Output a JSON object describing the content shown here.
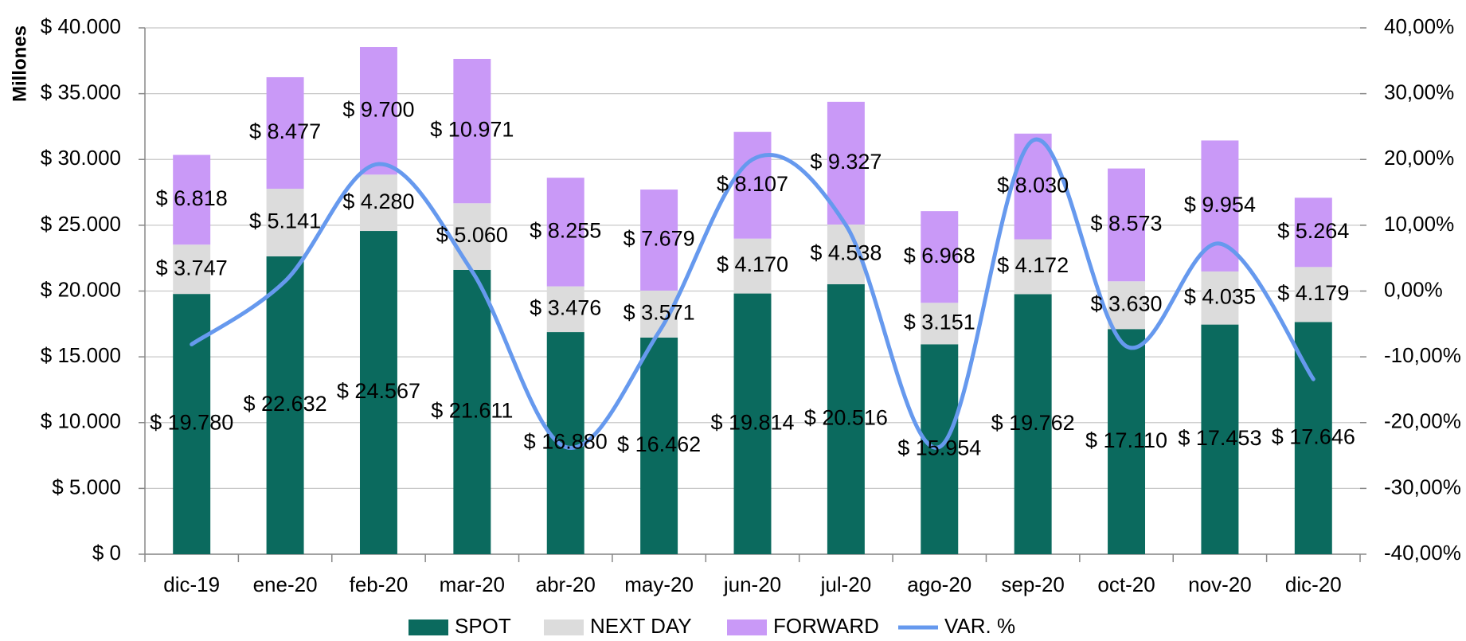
{
  "chart_data": {
    "type": "bar",
    "y_axis_label": "Millones",
    "categories": [
      "dic-19",
      "ene-20",
      "feb-20",
      "mar-20",
      "abr-20",
      "may-20",
      "jun-20",
      "jul-20",
      "ago-20",
      "sep-20",
      "oct-20",
      "nov-20",
      "dic-20"
    ],
    "series": [
      {
        "name": "SPOT",
        "color": "#0b6a5e",
        "values": [
          19780,
          22632,
          24567,
          21611,
          16880,
          16462,
          19814,
          20516,
          15954,
          19762,
          17110,
          17453,
          17646
        ],
        "value_labels": [
          "$ 19.780",
          "$ 22.632",
          "$ 24.567",
          "$ 21.611",
          "$ 16.880",
          "$ 16.462",
          "$ 19.814",
          "$ 20.516",
          "$ 15.954",
          "$ 19.762",
          "$ 17.110",
          "$ 17.453",
          "$ 17.646"
        ]
      },
      {
        "name": "NEXT DAY",
        "color": "#dcdcdc",
        "values": [
          3747,
          5141,
          4280,
          5060,
          3476,
          3571,
          4170,
          4538,
          3151,
          4172,
          3630,
          4035,
          4179
        ],
        "value_labels": [
          "$ 3.747",
          "$ 5.141",
          "$ 4.280",
          "$ 5.060",
          "$ 3.476",
          "$ 3.571",
          "$ 4.170",
          "$ 4.538",
          "$ 3.151",
          "$ 4.172",
          "$ 3.630",
          "$ 4.035",
          "$ 4.179"
        ]
      },
      {
        "name": "FORWARD",
        "color": "#c999f7",
        "values": [
          6818,
          8477,
          9700,
          10971,
          8255,
          7679,
          8107,
          9327,
          6968,
          8030,
          8573,
          9954,
          5264
        ],
        "value_labels": [
          "$ 6.818",
          "$ 8.477",
          "$ 9.700",
          "$ 10.971",
          "$ 8.255",
          "$ 7.679",
          "$ 8.107",
          "$ 9.327",
          "$ 6.968",
          "$ 8.030",
          "$ 8.573",
          "$ 9.954",
          "$ 5.264"
        ]
      },
      {
        "name": "VAR. %",
        "type": "line",
        "axis": "y2",
        "color": "#6699ee",
        "values": [
          -8.1,
          1.5,
          19.3,
          3.0,
          -23.7,
          -6.2,
          20,
          10,
          -23.7,
          22.9,
          -8.4,
          7.2,
          -13.4
        ]
      }
    ],
    "ylim": [
      0,
      40000
    ],
    "yticks": [
      {
        "value": 0,
        "label": "$ 0"
      },
      {
        "value": 5000,
        "label": "$ 5.000"
      },
      {
        "value": 10000,
        "label": "$ 10.000"
      },
      {
        "value": 15000,
        "label": "$ 15.000"
      },
      {
        "value": 20000,
        "label": "$ 20.000"
      },
      {
        "value": 25000,
        "label": "$ 25.000"
      },
      {
        "value": 30000,
        "label": "$ 30.000"
      },
      {
        "value": 35000,
        "label": "$ 35.000"
      },
      {
        "value": 40000,
        "label": "$ 40.000"
      }
    ],
    "y2lim": [
      -40,
      40
    ],
    "y2ticks": [
      {
        "value": -40,
        "label": "-40,00%"
      },
      {
        "value": -30,
        "label": "-30,00%"
      },
      {
        "value": -20,
        "label": "-20,00%"
      },
      {
        "value": -10,
        "label": "-10,00%"
      },
      {
        "value": 0,
        "label": "0,00%"
      },
      {
        "value": 10,
        "label": "10,00%"
      },
      {
        "value": 20,
        "label": "20,00%"
      },
      {
        "value": 30,
        "label": "30,00%"
      },
      {
        "value": 40,
        "label": "40,00%"
      }
    ],
    "grid": true,
    "legend": "bottom"
  }
}
